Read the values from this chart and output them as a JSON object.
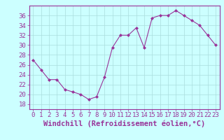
{
  "x": [
    0,
    1,
    2,
    3,
    4,
    5,
    6,
    7,
    8,
    9,
    10,
    11,
    12,
    13,
    14,
    15,
    16,
    17,
    18,
    19,
    20,
    21,
    22,
    23
  ],
  "y": [
    27,
    25,
    23,
    23,
    21,
    20.5,
    20,
    19,
    19.5,
    23.5,
    29.5,
    32,
    32,
    33.5,
    29.5,
    35.5,
    36,
    36,
    37,
    36,
    35,
    34,
    32,
    30
  ],
  "line_color": "#993399",
  "marker_color": "#993399",
  "bg_color": "#ccffff",
  "grid_color": "#aadddd",
  "axis_color": "#993399",
  "tick_label_color": "#993399",
  "xlabel": "Windchill (Refroidissement éolien,°C)",
  "ylim": [
    17,
    38
  ],
  "yticks": [
    18,
    20,
    22,
    24,
    26,
    28,
    30,
    32,
    34,
    36
  ],
  "xticks": [
    0,
    1,
    2,
    3,
    4,
    5,
    6,
    7,
    8,
    9,
    10,
    11,
    12,
    13,
    14,
    15,
    16,
    17,
    18,
    19,
    20,
    21,
    22,
    23
  ],
  "font_size": 6.5,
  "xlabel_font_size": 7.5
}
